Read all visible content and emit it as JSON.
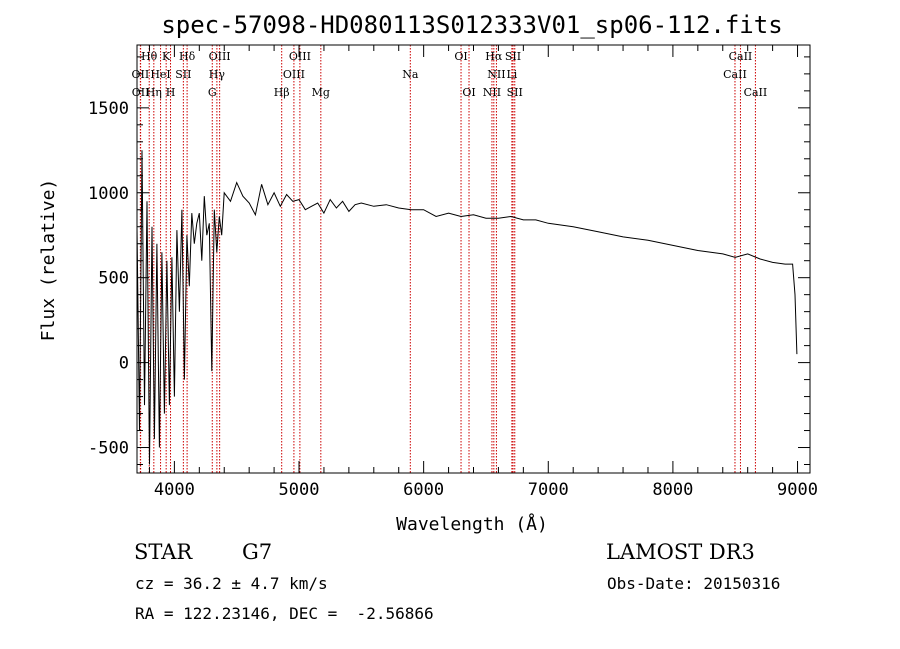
{
  "chart_data": {
    "type": "line",
    "title": "spec-57098-HD080113S012333V01_sp06-112.fits",
    "xlabel": "Wavelength (Å)",
    "ylabel": "Flux (relative)",
    "xlim": [
      3700,
      9100
    ],
    "ylim": [
      -650,
      1870
    ],
    "xticks": [
      4000,
      5000,
      6000,
      7000,
      8000,
      9000
    ],
    "yticks": [
      -500,
      0,
      500,
      1000,
      1500
    ],
    "x_minor_step": 200,
    "y_minor_step": 100,
    "line_color": "#000000",
    "marker_color": "#cc0000",
    "series": [
      {
        "name": "spectrum",
        "x": [
          3700,
          3720,
          3740,
          3760,
          3780,
          3800,
          3820,
          3840,
          3860,
          3880,
          3900,
          3920,
          3940,
          3960,
          3980,
          4000,
          4020,
          4040,
          4060,
          4080,
          4100,
          4120,
          4140,
          4160,
          4180,
          4200,
          4220,
          4240,
          4260,
          4280,
          4300,
          4320,
          4340,
          4360,
          4380,
          4400,
          4450,
          4500,
          4550,
          4600,
          4650,
          4700,
          4750,
          4800,
          4850,
          4900,
          4950,
          5000,
          5050,
          5100,
          5150,
          5200,
          5250,
          5300,
          5350,
          5400,
          5450,
          5500,
          5600,
          5700,
          5800,
          5900,
          6000,
          6100,
          6200,
          6300,
          6400,
          6500,
          6600,
          6700,
          6800,
          6900,
          7000,
          7200,
          7400,
          7600,
          7800,
          8000,
          8200,
          8400,
          8500,
          8600,
          8700,
          8800,
          8900,
          8960,
          8980,
          8995
        ],
        "y": [
          800,
          -400,
          1250,
          -250,
          950,
          -600,
          800,
          -450,
          700,
          -500,
          650,
          -300,
          600,
          -250,
          620,
          -200,
          780,
          300,
          900,
          -100,
          750,
          450,
          880,
          700,
          820,
          880,
          600,
          980,
          750,
          820,
          -50,
          900,
          650,
          860,
          750,
          1000,
          950,
          1060,
          980,
          940,
          870,
          1050,
          930,
          1000,
          920,
          990,
          950,
          960,
          900,
          920,
          940,
          880,
          960,
          910,
          950,
          890,
          930,
          940,
          920,
          930,
          910,
          900,
          900,
          860,
          880,
          860,
          870,
          850,
          850,
          860,
          840,
          840,
          820,
          800,
          770,
          740,
          720,
          690,
          660,
          640,
          620,
          640,
          610,
          590,
          580,
          580,
          400,
          50
        ]
      }
    ],
    "lines": [
      {
        "label": "Hθ",
        "w": 3798,
        "row": 0
      },
      {
        "label": "OII",
        "w": 3727,
        "row": 1
      },
      {
        "label": "OII",
        "w": 3729,
        "row": 2
      },
      {
        "label": "K",
        "w": 3934,
        "row": 0
      },
      {
        "label": "HeI",
        "w": 3889,
        "row": 1
      },
      {
        "label": "Hη",
        "w": 3835,
        "row": 2
      },
      {
        "label": "SII",
        "w": 4072,
        "row": 1
      },
      {
        "label": "H",
        "w": 3969,
        "row": 2
      },
      {
        "label": "Hδ",
        "w": 4102,
        "row": 0
      },
      {
        "label": "OIII",
        "w": 4363,
        "row": 0
      },
      {
        "label": "Hγ",
        "w": 4341,
        "row": 1
      },
      {
        "label": "G",
        "w": 4304,
        "row": 2
      },
      {
        "label": "Hβ",
        "w": 4861,
        "row": 2
      },
      {
        "label": "OIII",
        "w": 5007,
        "row": 0
      },
      {
        "label": "OIII",
        "w": 4959,
        "row": 1
      },
      {
        "label": "Mg",
        "w": 5175,
        "row": 2
      },
      {
        "label": "Na",
        "w": 5893,
        "row": 1
      },
      {
        "label": "OI",
        "w": 6300,
        "row": 0
      },
      {
        "label": "OI",
        "w": 6364,
        "row": 2
      },
      {
        "label": "Hα",
        "w": 6563,
        "row": 0
      },
      {
        "label": "SII",
        "w": 6717,
        "row": 0
      },
      {
        "label": "NII",
        "w": 6584,
        "row": 1
      },
      {
        "label": "Li",
        "w": 6708,
        "row": 1
      },
      {
        "label": "NII",
        "w": 6548,
        "row": 2
      },
      {
        "label": "SII",
        "w": 6731,
        "row": 2
      },
      {
        "label": "CaII",
        "w": 8542,
        "row": 0
      },
      {
        "label": "CaII",
        "w": 8498,
        "row": 1
      },
      {
        "label": "CaII",
        "w": 8662,
        "row": 2
      }
    ]
  },
  "info": {
    "object_class": "STAR",
    "subclass": "G7",
    "survey": "LAMOST DR3",
    "cz_text": "cz = 36.2 ± 4.7 km/s",
    "obs_date_text": "Obs-Date: 20150316",
    "coords_text": "RA = 122.23146, DEC =  -2.56866"
  }
}
